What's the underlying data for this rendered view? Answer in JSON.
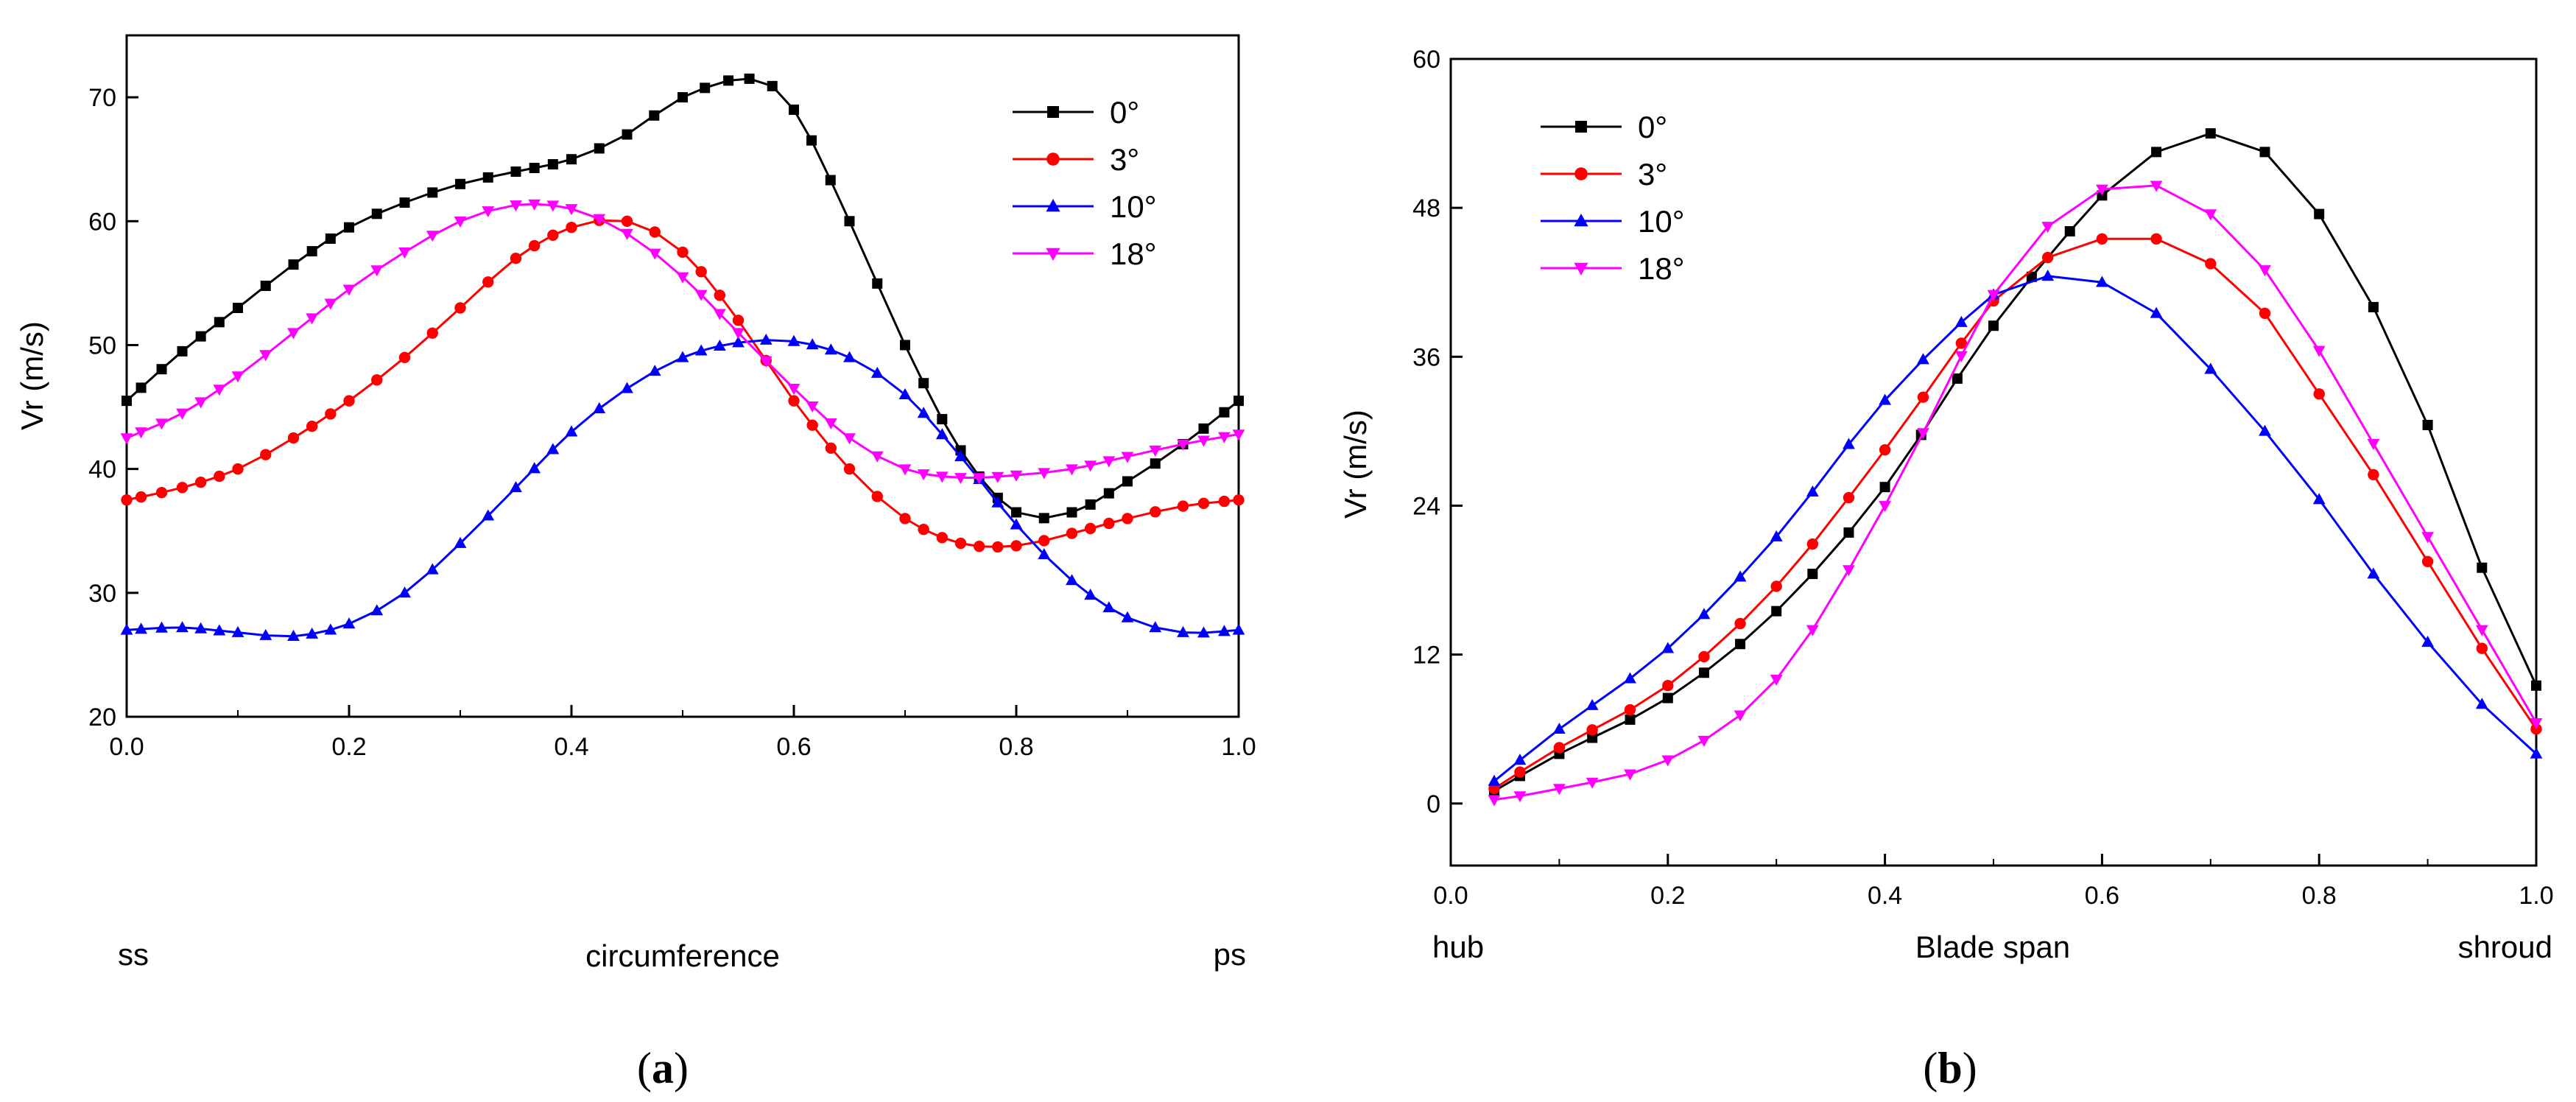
{
  "chart_data": [
    {
      "type": "line",
      "panel_label": {
        "open": "(",
        "letter": "a",
        "close": ")"
      },
      "xlabel": "circumference",
      "ylabel": "Vr (m/s)",
      "xlim": [
        0.0,
        1.0
      ],
      "ylim": [
        20,
        75
      ],
      "xticks": [
        "0.0",
        "0.2",
        "0.4",
        "0.6",
        "0.8",
        "1.0"
      ],
      "yticks": [
        "20",
        "30",
        "40",
        "50",
        "60",
        "70"
      ],
      "x_left_label": "ss",
      "x_right_label": "ps",
      "legend_position": "top-right",
      "grid": false,
      "series": [
        {
          "name": "0°",
          "color": "#000000",
          "marker": "square",
          "points": [
            [
              0.0,
              45.5
            ],
            [
              0.05,
              49.5
            ],
            [
              0.1,
              53.0
            ],
            [
              0.15,
              56.5
            ],
            [
              0.2,
              59.5
            ],
            [
              0.25,
              61.5
            ],
            [
              0.3,
              63.0
            ],
            [
              0.35,
              64.0
            ],
            [
              0.4,
              65.0
            ],
            [
              0.45,
              67.0
            ],
            [
              0.5,
              70.0
            ],
            [
              0.56,
              71.5
            ],
            [
              0.6,
              69.0
            ],
            [
              0.65,
              60.0
            ],
            [
              0.7,
              50.0
            ],
            [
              0.75,
              41.5
            ],
            [
              0.8,
              36.5
            ],
            [
              0.85,
              36.5
            ],
            [
              0.9,
              39.0
            ],
            [
              0.95,
              42.0
            ],
            [
              1.0,
              45.5
            ]
          ]
        },
        {
          "name": "3°",
          "color": "#ff0000",
          "marker": "circle",
          "points": [
            [
              0.0,
              37.5
            ],
            [
              0.05,
              38.5
            ],
            [
              0.1,
              40.0
            ],
            [
              0.15,
              42.5
            ],
            [
              0.2,
              45.5
            ],
            [
              0.25,
              49.0
            ],
            [
              0.3,
              53.0
            ],
            [
              0.35,
              57.0
            ],
            [
              0.4,
              59.5
            ],
            [
              0.45,
              60.0
            ],
            [
              0.5,
              57.5
            ],
            [
              0.55,
              52.0
            ],
            [
              0.6,
              45.5
            ],
            [
              0.65,
              40.0
            ],
            [
              0.7,
              36.0
            ],
            [
              0.75,
              34.0
            ],
            [
              0.8,
              33.8
            ],
            [
              0.85,
              34.8
            ],
            [
              0.9,
              36.0
            ],
            [
              0.95,
              37.0
            ],
            [
              1.0,
              37.5
            ]
          ]
        },
        {
          "name": "10°",
          "color": "#0000ff",
          "marker": "triangle-up",
          "points": [
            [
              0.0,
              27.0
            ],
            [
              0.05,
              27.2
            ],
            [
              0.1,
              26.8
            ],
            [
              0.15,
              26.5
            ],
            [
              0.2,
              27.5
            ],
            [
              0.25,
              30.0
            ],
            [
              0.3,
              34.0
            ],
            [
              0.35,
              38.5
            ],
            [
              0.4,
              43.0
            ],
            [
              0.45,
              46.5
            ],
            [
              0.5,
              49.0
            ],
            [
              0.55,
              50.2
            ],
            [
              0.6,
              50.3
            ],
            [
              0.65,
              49.0
            ],
            [
              0.7,
              46.0
            ],
            [
              0.75,
              41.0
            ],
            [
              0.8,
              35.5
            ],
            [
              0.85,
              31.0
            ],
            [
              0.9,
              28.0
            ],
            [
              0.95,
              26.8
            ],
            [
              1.0,
              27.0
            ]
          ]
        },
        {
          "name": "18°",
          "color": "#ff00ff",
          "marker": "triangle-down",
          "points": [
            [
              0.0,
              42.5
            ],
            [
              0.05,
              44.5
            ],
            [
              0.1,
              47.5
            ],
            [
              0.15,
              51.0
            ],
            [
              0.2,
              54.5
            ],
            [
              0.25,
              57.5
            ],
            [
              0.3,
              60.0
            ],
            [
              0.35,
              61.3
            ],
            [
              0.4,
              61.0
            ],
            [
              0.45,
              59.0
            ],
            [
              0.5,
              55.5
            ],
            [
              0.55,
              51.0
            ],
            [
              0.6,
              46.5
            ],
            [
              0.65,
              42.5
            ],
            [
              0.7,
              40.0
            ],
            [
              0.75,
              39.3
            ],
            [
              0.8,
              39.5
            ],
            [
              0.85,
              40.0
            ],
            [
              0.9,
              41.0
            ],
            [
              0.95,
              42.0
            ],
            [
              1.0,
              42.8
            ]
          ]
        }
      ]
    },
    {
      "type": "line",
      "panel_label": {
        "open": "(",
        "letter": "b",
        "close": ")"
      },
      "xlabel": "Blade span",
      "ylabel": "Vr (m/s)",
      "xlim": [
        0.0,
        1.0
      ],
      "ylim": [
        -5,
        60
      ],
      "xticks": [
        "0.0",
        "0.2",
        "0.4",
        "0.6",
        "0.8",
        "1.0"
      ],
      "yticks": [
        "0",
        "12",
        "24",
        "36",
        "48",
        "60"
      ],
      "x_left_label": "hub",
      "x_right_label": "shroud",
      "legend_position": "top-left",
      "grid": false,
      "series": [
        {
          "name": "0°",
          "color": "#000000",
          "marker": "square",
          "points": [
            [
              0.04,
              1.0
            ],
            [
              0.1,
              4.0
            ],
            [
              0.2,
              8.5
            ],
            [
              0.3,
              15.5
            ],
            [
              0.4,
              25.5
            ],
            [
              0.5,
              38.5
            ],
            [
              0.6,
              49.0
            ],
            [
              0.65,
              52.5
            ],
            [
              0.7,
              54.0
            ],
            [
              0.75,
              52.5
            ],
            [
              0.8,
              47.5
            ],
            [
              0.85,
              40.0
            ],
            [
              0.9,
              30.5
            ],
            [
              0.95,
              19.0
            ],
            [
              1.0,
              9.5
            ]
          ]
        },
        {
          "name": "3°",
          "color": "#ff0000",
          "marker": "circle",
          "points": [
            [
              0.04,
              1.2
            ],
            [
              0.1,
              4.5
            ],
            [
              0.2,
              9.5
            ],
            [
              0.3,
              17.5
            ],
            [
              0.4,
              28.5
            ],
            [
              0.5,
              40.5
            ],
            [
              0.55,
              44.0
            ],
            [
              0.6,
              45.5
            ],
            [
              0.65,
              45.5
            ],
            [
              0.7,
              43.5
            ],
            [
              0.75,
              39.5
            ],
            [
              0.8,
              33.0
            ],
            [
              0.85,
              26.5
            ],
            [
              0.9,
              19.5
            ],
            [
              0.95,
              12.5
            ],
            [
              1.0,
              6.0
            ]
          ]
        },
        {
          "name": "10°",
          "color": "#0000ff",
          "marker": "triangle-up",
          "points": [
            [
              0.04,
              1.8
            ],
            [
              0.1,
              6.0
            ],
            [
              0.2,
              12.5
            ],
            [
              0.3,
              21.5
            ],
            [
              0.4,
              32.5
            ],
            [
              0.5,
              41.0
            ],
            [
              0.55,
              42.5
            ],
            [
              0.6,
              42.0
            ],
            [
              0.65,
              39.5
            ],
            [
              0.7,
              35.0
            ],
            [
              0.75,
              30.0
            ],
            [
              0.8,
              24.5
            ],
            [
              0.85,
              18.5
            ],
            [
              0.9,
              13.0
            ],
            [
              0.95,
              8.0
            ],
            [
              1.0,
              4.0
            ]
          ]
        },
        {
          "name": "18°",
          "color": "#ff00ff",
          "marker": "triangle-down",
          "points": [
            [
              0.04,
              0.3
            ],
            [
              0.1,
              1.2
            ],
            [
              0.2,
              3.5
            ],
            [
              0.3,
              10.0
            ],
            [
              0.4,
              24.0
            ],
            [
              0.5,
              41.0
            ],
            [
              0.55,
              46.5
            ],
            [
              0.6,
              49.5
            ],
            [
              0.65,
              49.8
            ],
            [
              0.7,
              47.5
            ],
            [
              0.75,
              43.0
            ],
            [
              0.8,
              36.5
            ],
            [
              0.85,
              29.0
            ],
            [
              0.9,
              21.5
            ],
            [
              0.95,
              14.0
            ],
            [
              1.0,
              6.5
            ]
          ]
        }
      ]
    }
  ]
}
